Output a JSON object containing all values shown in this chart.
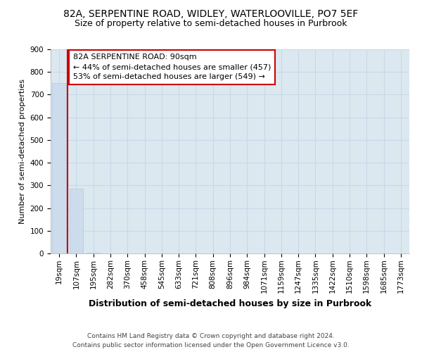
{
  "title": "82A, SERPENTINE ROAD, WIDLEY, WATERLOOVILLE, PO7 5EF",
  "subtitle": "Size of property relative to semi-detached houses in Purbrook",
  "xlabel": "Distribution of semi-detached houses by size in Purbrook",
  "ylabel": "Number of semi-detached properties",
  "categories": [
    "19sqm",
    "107sqm",
    "195sqm",
    "282sqm",
    "370sqm",
    "458sqm",
    "545sqm",
    "633sqm",
    "721sqm",
    "808sqm",
    "896sqm",
    "984sqm",
    "1071sqm",
    "1159sqm",
    "1247sqm",
    "1335sqm",
    "1422sqm",
    "1510sqm",
    "1598sqm",
    "1685sqm",
    "1773sqm"
  ],
  "values": [
    750,
    285,
    2,
    1,
    1,
    1,
    0,
    0,
    0,
    0,
    0,
    0,
    0,
    0,
    0,
    0,
    0,
    0,
    0,
    0,
    0
  ],
  "bar_color": "#ccdcec",
  "bar_edge_color": "#b0c8dc",
  "grid_color": "#c8d8e8",
  "background_color": "#dce8f0",
  "property_line_x": 0.5,
  "property_line_color": "#cc0000",
  "annotation_text": "82A SERPENTINE ROAD: 90sqm\n← 44% of semi-detached houses are smaller (457)\n53% of semi-detached houses are larger (549) →",
  "annotation_box_color": "#ffffff",
  "annotation_box_edge": "#cc0000",
  "ylim": [
    0,
    900
  ],
  "yticks": [
    0,
    100,
    200,
    300,
    400,
    500,
    600,
    700,
    800,
    900
  ],
  "footer_text": "Contains HM Land Registry data © Crown copyright and database right 2024.\nContains public sector information licensed under the Open Government Licence v3.0.",
  "title_fontsize": 10,
  "subtitle_fontsize": 9,
  "ylabel_fontsize": 8,
  "xlabel_fontsize": 9,
  "tick_fontsize": 7.5,
  "annotation_fontsize": 8,
  "footer_fontsize": 6.5
}
